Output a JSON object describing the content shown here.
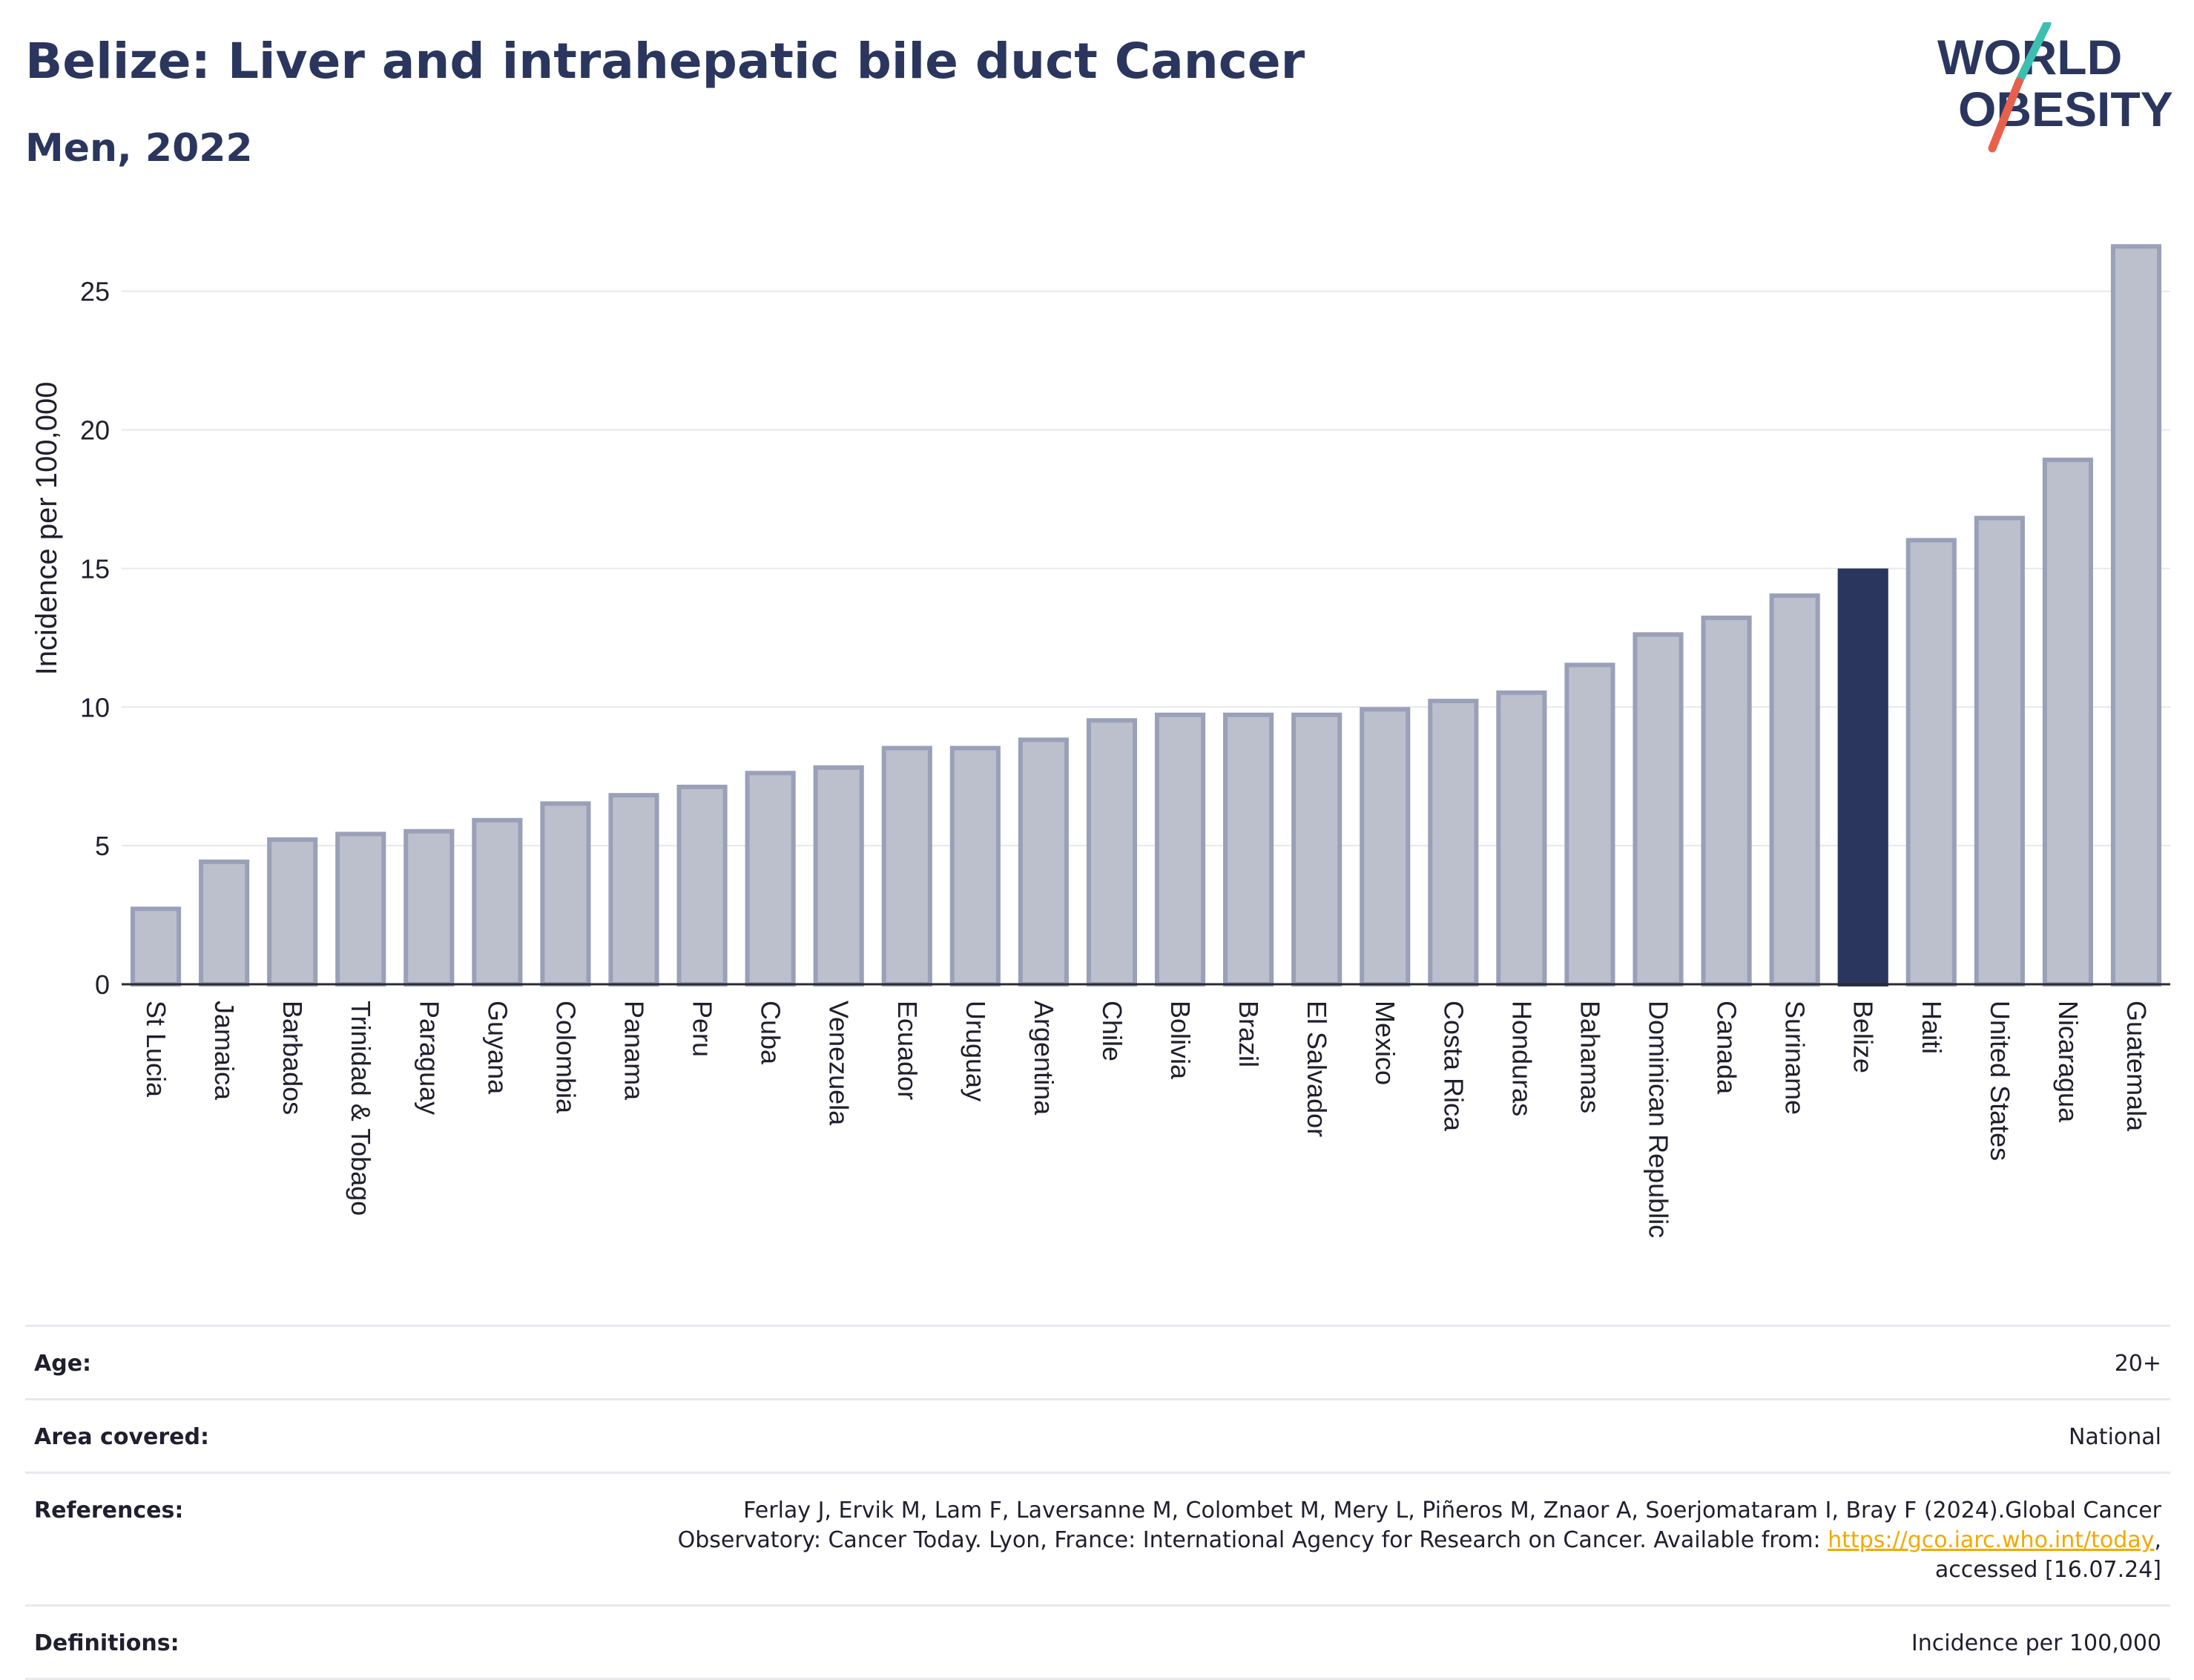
{
  "header": {
    "title": "Belize: Liver and intrahepatic bile duct Cancer",
    "subtitle": "Men, 2022"
  },
  "logo": {
    "line1": "WORLD",
    "line2": "OBESITY",
    "colors": {
      "text": "#2b365e",
      "slash_teal": "#3bbfb0",
      "slash_red": "#e8604c"
    }
  },
  "chart_data": {
    "type": "bar",
    "title": "Belize: Liver and intrahepatic bile duct Cancer",
    "subtitle": "Men, 2022",
    "xlabel": "",
    "ylabel": "Incidence per 100,000",
    "ylim": [
      0,
      27
    ],
    "yticks": [
      0,
      5,
      10,
      15,
      20,
      25
    ],
    "grid": true,
    "highlight": "Belize",
    "colors": {
      "bar": "#bcc0cd",
      "bar_edge": "#9aa0b8",
      "highlight": "#2b365e"
    },
    "categories": [
      "St Lucia",
      "Jamaica",
      "Barbados",
      "Trinidad & Tobago",
      "Paraguay",
      "Guyana",
      "Colombia",
      "Panama",
      "Peru",
      "Cuba",
      "Venezuela",
      "Ecuador",
      "Uruguay",
      "Argentina",
      "Chile",
      "Bolivia",
      "Brazil",
      "El Salvador",
      "Mexico",
      "Costa Rica",
      "Honduras",
      "Bahamas",
      "Dominican Republic",
      "Canada",
      "Suriname",
      "Belize",
      "Haiti",
      "United States",
      "Nicaragua",
      "Guatemala"
    ],
    "values": [
      2.8,
      4.5,
      5.3,
      5.5,
      5.6,
      6.0,
      6.6,
      6.9,
      7.2,
      7.7,
      7.9,
      8.6,
      8.6,
      8.9,
      9.6,
      9.8,
      9.8,
      9.8,
      10.0,
      10.3,
      10.6,
      11.6,
      12.7,
      13.3,
      14.1,
      15.0,
      16.1,
      16.9,
      19.0,
      26.7
    ]
  },
  "meta": {
    "age": {
      "label": "Age:",
      "value": "20+"
    },
    "area": {
      "label": "Area covered:",
      "value": "National"
    },
    "references": {
      "label": "References:",
      "line1": "Ferlay J, Ervik M, Lam F, Laversanne M, Colombet M, Mery L, Piñeros M, Znaor A, Soerjomataram I, Bray F (2024).Global Cancer",
      "line2_pre": "Observatory: Cancer Today. Lyon, France: International Agency for Research on Cancer. Available from: ",
      "link": "https://gco.iarc.who.int/today",
      "line2_post": ",",
      "line3": "accessed [16.07.24]"
    },
    "definitions": {
      "label": "Definitions:",
      "value": "Incidence per 100,000"
    }
  }
}
